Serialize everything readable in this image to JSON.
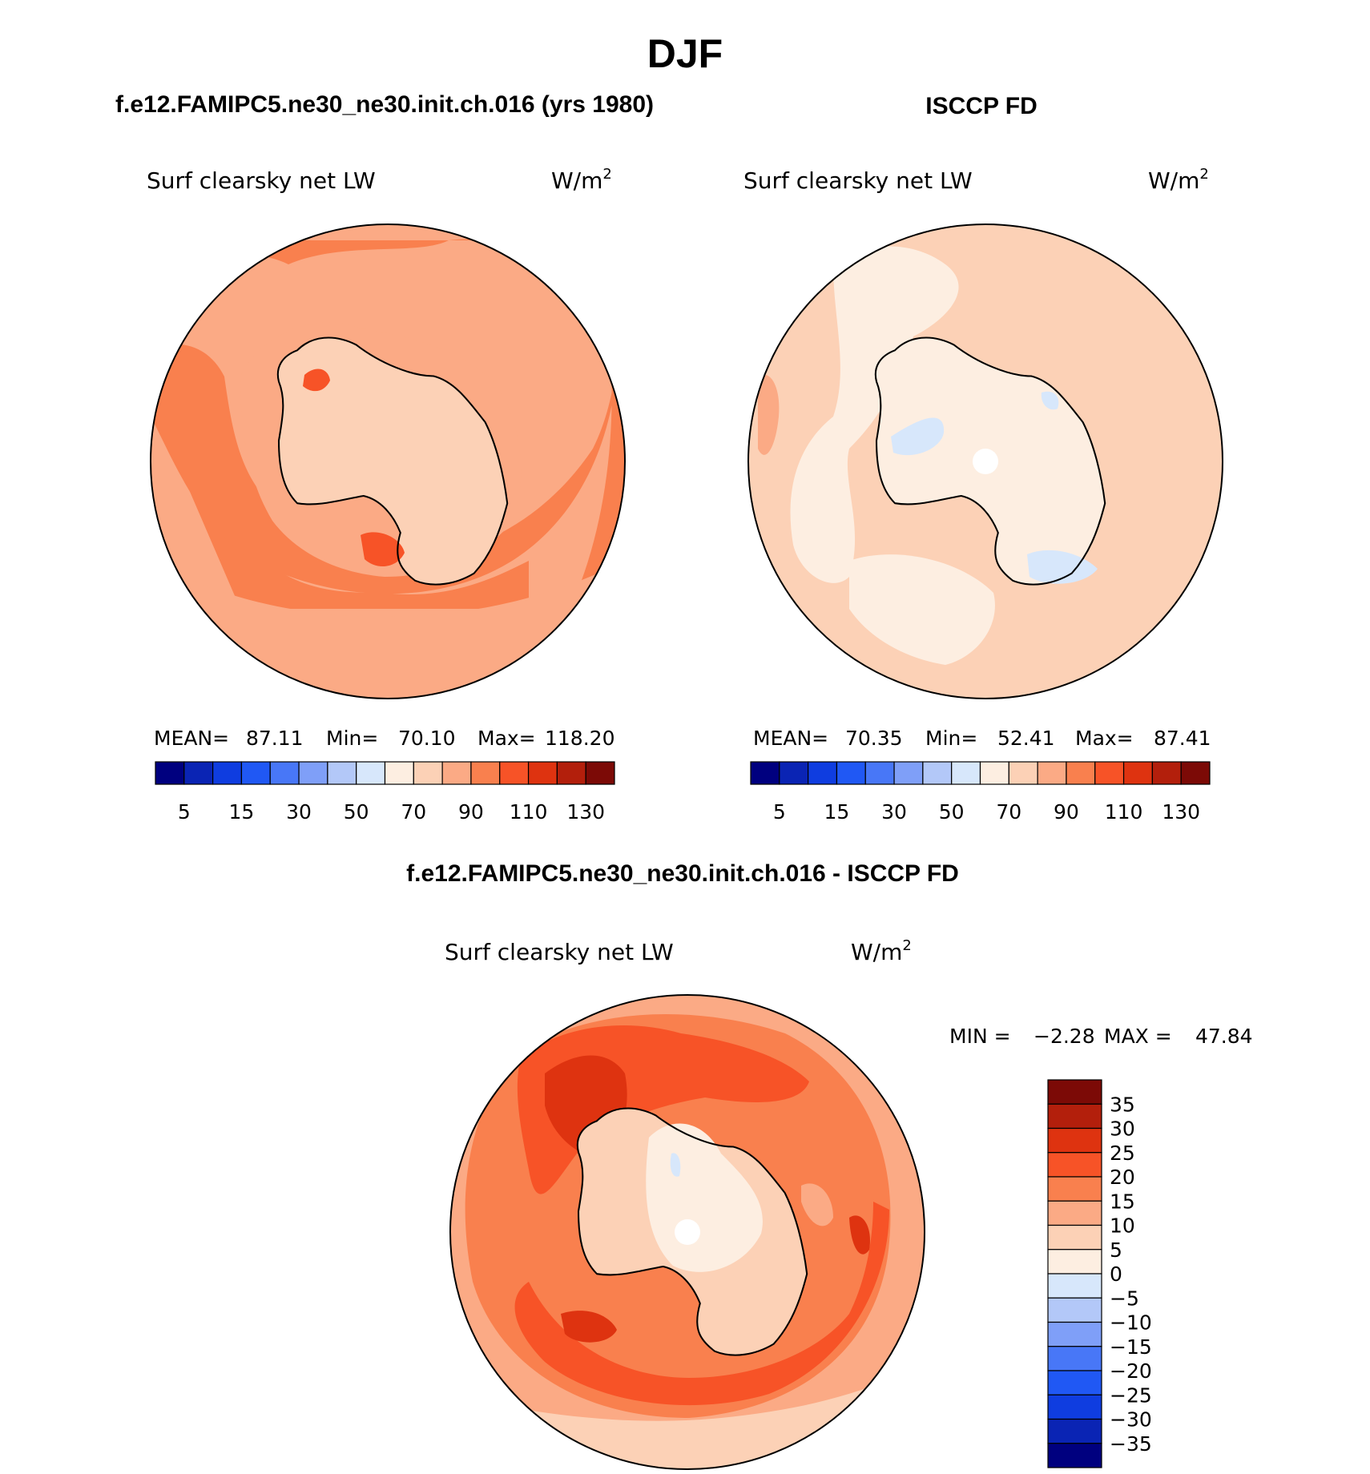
{
  "title": "DJF",
  "colors": {
    "abs_scale": [
      "#00007f",
      "#0a24b4",
      "#0f3de0",
      "#2058f4",
      "#4877f7",
      "#7f9ff8",
      "#b3c8f8",
      "#d7e7fb",
      "#fdeee1",
      "#fcd1b6",
      "#fbaa85",
      "#f9804e",
      "#f75327",
      "#de3310",
      "#b31f0c",
      "#7c0a06"
    ],
    "diff_scale": [
      "#00007f",
      "#0a24b4",
      "#0f3de0",
      "#2058f4",
      "#4877f7",
      "#7f9ff8",
      "#b3c8f8",
      "#d7e7fb",
      "#fdeee1",
      "#fcd1b6",
      "#fbaa85",
      "#f9804e",
      "#f75327",
      "#de3310",
      "#b31f0c",
      "#7c0a06"
    ],
    "outline": "#000000"
  },
  "panels": [
    {
      "id": "model",
      "title": "f.e12.FAMIPC5.ne30_ne30.init.ch.016 (yrs 1980)",
      "variable": "Surf clearsky net LW",
      "units_base": "W/m",
      "units_sup": "2",
      "stats": {
        "mean_label": "MEAN=",
        "mean": "87.11",
        "min_label": "Min=",
        "min": "70.10",
        "max_label": "Max=",
        "max": "118.20"
      },
      "cbar_ticks": [
        "5",
        "15",
        "30",
        "50",
        "70",
        "90",
        "110",
        "130"
      ],
      "levels": [
        70,
        80,
        90,
        100,
        110
      ]
    },
    {
      "id": "obs",
      "title": "ISCCP FD",
      "variable": "Surf clearsky net LW",
      "units_base": "W/m",
      "units_sup": "2",
      "stats": {
        "mean_label": "MEAN=",
        "mean": "70.35",
        "min_label": "Min=",
        "min": "52.41",
        "max_label": "Max=",
        "max": "87.41"
      },
      "cbar_ticks": [
        "5",
        "15",
        "30",
        "50",
        "70",
        "90",
        "110",
        "130"
      ],
      "levels": [
        60,
        70,
        80
      ]
    }
  ],
  "diff": {
    "title": "f.e12.FAMIPC5.ne30_ne30.init.ch.016 - ISCCP FD",
    "variable": "Surf clearsky net LW",
    "units_base": "W/m",
    "units_sup": "2",
    "stats": {
      "min_label": "MIN =",
      "min": "−2.28",
      "max_label": "MAX =",
      "max": "47.84"
    },
    "cbar_ticks": [
      "35",
      "30",
      "25",
      "20",
      "15",
      "10",
      "5",
      "0",
      "−5",
      "−10",
      "−15",
      "−20",
      "−25",
      "−30",
      "−35"
    ],
    "levels": [
      0,
      5,
      10,
      15,
      20,
      25,
      30
    ]
  }
}
